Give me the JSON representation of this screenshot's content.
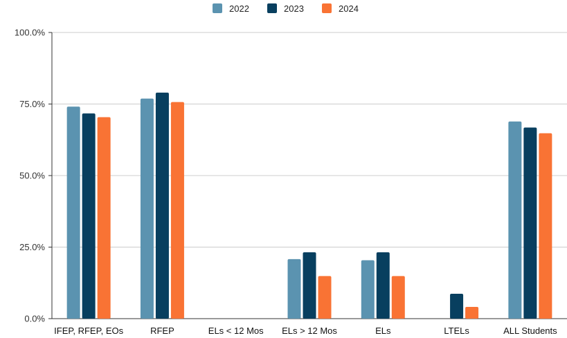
{
  "chart_data": {
    "type": "bar",
    "title": "",
    "xlabel": "",
    "ylabel": "",
    "ylim": [
      0,
      100
    ],
    "yticks": [
      "0.0%",
      "25.0%",
      "50.0%",
      "75.0%",
      "100.0%"
    ],
    "ytick_values": [
      0,
      25,
      50,
      75,
      100
    ],
    "grid": true,
    "legend_position": "top-center",
    "categories": [
      "IFEP, RFEP, EOs",
      "RFEP",
      "ELs < 12 Mos",
      "ELs > 12 Mos",
      "ELs",
      "LTELs",
      "ALL Students"
    ],
    "series": [
      {
        "name": "2022",
        "color": "#5b93b0",
        "values": [
          74.1,
          76.9,
          null,
          20.8,
          20.4,
          null,
          68.9
        ]
      },
      {
        "name": "2023",
        "color": "#083f5f",
        "values": [
          71.7,
          79.0,
          null,
          23.2,
          23.2,
          8.7,
          66.8
        ]
      },
      {
        "name": "2024",
        "color": "#f97334",
        "values": [
          70.4,
          75.7,
          null,
          14.9,
          14.9,
          4.1,
          64.8
        ]
      }
    ]
  }
}
